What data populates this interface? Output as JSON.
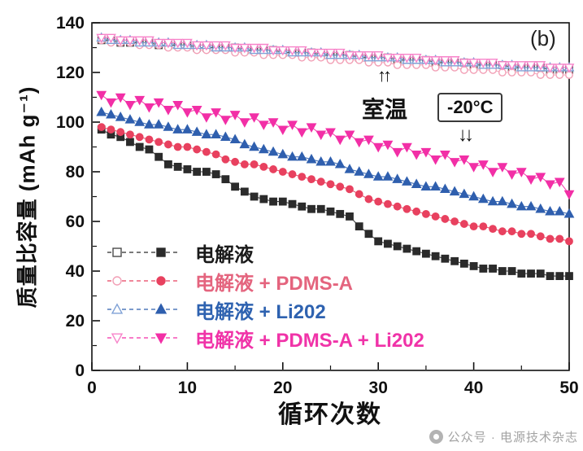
{
  "figure": {
    "panel_label": "(b)"
  },
  "axes": {
    "ylabel": "质量比容量 (mAh g⁻¹)",
    "xlabel": "循环次数"
  },
  "annotations": {
    "room_temp_label": "室温",
    "cold_temp_label": "-20°C",
    "up_arrows": "↑↑",
    "down_arrows": "↓↓"
  },
  "legend": [
    {
      "label": "电解液",
      "marker": "square",
      "open_color": "#4a4a4a",
      "fill_color": "#2b2b2b",
      "label_color": "#1a1a1a"
    },
    {
      "label": "电解液 + PDMS-A",
      "marker": "circle",
      "open_color": "#f2a0b6",
      "fill_color": "#e8415f",
      "label_color": "#e4647e"
    },
    {
      "label": "电解液 + Li202",
      "marker": "triangle-up",
      "open_color": "#7fa1d6",
      "fill_color": "#2f5fae",
      "label_color": "#2e62b0"
    },
    {
      "label": "电解液 + PDMS-A + Li202",
      "marker": "triangle-down",
      "open_color": "#f783c9",
      "fill_color": "#f22fa6",
      "label_color": "#f033a8"
    }
  ],
  "watermark": {
    "text": "公众号 · 电源技术杂志"
  },
  "chart_data": {
    "type": "scatter",
    "title": "",
    "xlabel": "循环次数",
    "ylabel": "质量比容量 (mAh g⁻¹)",
    "x_range": [
      0,
      50
    ],
    "y_range": [
      0,
      140
    ],
    "x_ticks": [
      0,
      10,
      20,
      30,
      40,
      50
    ],
    "y_ticks": [
      0,
      20,
      40,
      60,
      80,
      100,
      120,
      140
    ],
    "grid": false,
    "legend_position": "lower-left",
    "x": [
      1,
      2,
      3,
      4,
      5,
      6,
      7,
      8,
      9,
      10,
      11,
      12,
      13,
      14,
      15,
      16,
      17,
      18,
      19,
      20,
      21,
      22,
      23,
      24,
      25,
      26,
      27,
      28,
      29,
      30,
      31,
      32,
      33,
      34,
      35,
      36,
      37,
      38,
      39,
      40,
      41,
      42,
      43,
      44,
      45,
      46,
      47,
      48,
      49,
      50
    ],
    "series": [
      {
        "name": "电解液",
        "condition": "室温",
        "marker": "square",
        "fill": "open",
        "color": "#4a4a4a",
        "values": [
          133,
          133,
          132,
          132,
          132,
          132,
          131,
          131,
          131,
          131,
          130,
          130,
          130,
          130,
          130,
          129,
          129,
          129,
          129,
          128,
          128,
          128,
          128,
          127,
          127,
          127,
          127,
          126,
          126,
          126,
          126,
          125,
          125,
          125,
          125,
          124,
          124,
          124,
          124,
          123,
          123,
          123,
          123,
          122,
          122,
          122,
          122,
          121,
          121,
          121
        ]
      },
      {
        "name": "电解液 + PDMS-A",
        "condition": "室温",
        "marker": "circle",
        "fill": "open",
        "color": "#f2a0b6",
        "values": [
          133,
          132,
          132,
          132,
          131,
          131,
          131,
          130,
          130,
          130,
          129,
          129,
          129,
          129,
          128,
          128,
          128,
          127,
          127,
          127,
          127,
          126,
          126,
          126,
          125,
          125,
          125,
          125,
          124,
          124,
          124,
          123,
          123,
          123,
          123,
          122,
          122,
          122,
          121,
          121,
          121,
          121,
          120,
          120,
          120,
          120,
          119,
          119,
          119,
          119
        ]
      },
      {
        "name": "电解液 + Li202",
        "condition": "室温",
        "marker": "triangle-up",
        "fill": "open",
        "color": "#7fa1d6",
        "values": [
          134,
          133,
          133,
          133,
          132,
          132,
          132,
          132,
          131,
          131,
          131,
          131,
          130,
          130,
          130,
          130,
          129,
          129,
          129,
          129,
          128,
          128,
          128,
          128,
          127,
          127,
          127,
          127,
          126,
          126,
          126,
          126,
          125,
          125,
          125,
          125,
          124,
          124,
          124,
          124,
          123,
          123,
          123,
          123,
          122,
          122,
          122,
          122,
          122,
          122
        ]
      },
      {
        "name": "电解液 + PDMS-A + Li202",
        "condition": "室温",
        "marker": "triangle-down",
        "fill": "open",
        "color": "#f783c9",
        "values": [
          134,
          134,
          133,
          133,
          133,
          133,
          132,
          132,
          132,
          132,
          131,
          131,
          131,
          131,
          130,
          130,
          130,
          130,
          129,
          129,
          129,
          129,
          128,
          128,
          128,
          128,
          127,
          127,
          127,
          127,
          126,
          126,
          126,
          126,
          125,
          125,
          125,
          125,
          124,
          124,
          124,
          124,
          123,
          123,
          123,
          123,
          123,
          122,
          122,
          122
        ]
      },
      {
        "name": "电解液",
        "condition": "-20°C",
        "marker": "square",
        "fill": "filled",
        "color": "#2b2b2b",
        "values": [
          97,
          95,
          94,
          92,
          90,
          89,
          86,
          83,
          82,
          81,
          80,
          80,
          79,
          77,
          74,
          72,
          70,
          69,
          68,
          68,
          67,
          66,
          65,
          65,
          64,
          63,
          62,
          58,
          55,
          52,
          51,
          50,
          49,
          48,
          47,
          46,
          45,
          44,
          43,
          42,
          41,
          41,
          40,
          40,
          39,
          39,
          39,
          38,
          38,
          38
        ]
      },
      {
        "name": "电解液 + PDMS-A",
        "condition": "-20°C",
        "marker": "circle",
        "fill": "filled",
        "color": "#e8415f",
        "values": [
          98,
          97,
          96,
          95,
          94,
          93,
          92,
          91,
          90,
          90,
          89,
          88,
          87,
          85,
          84,
          83,
          83,
          82,
          81,
          80,
          79,
          78,
          77,
          76,
          75,
          74,
          73,
          71,
          69,
          68,
          67,
          66,
          65,
          64,
          63,
          62,
          61,
          60,
          59,
          58,
          58,
          57,
          56,
          56,
          55,
          55,
          54,
          53,
          53,
          52
        ]
      },
      {
        "name": "电解液 + Li202",
        "condition": "-20°C",
        "marker": "triangle-up",
        "fill": "filled",
        "color": "#2f5fae",
        "values": [
          104,
          103,
          102,
          101,
          100,
          99,
          99,
          98,
          97,
          97,
          96,
          95,
          95,
          94,
          93,
          91,
          90,
          89,
          88,
          87,
          86,
          86,
          85,
          84,
          84,
          83,
          81,
          80,
          79,
          78,
          78,
          77,
          76,
          75,
          74,
          74,
          73,
          72,
          71,
          70,
          69,
          68,
          68,
          67,
          66,
          66,
          65,
          64,
          64,
          63
        ]
      },
      {
        "name": "电解液 + PDMS-A + Li202",
        "condition": "-20°C",
        "marker": "triangle-down",
        "fill": "filled",
        "color": "#f22fa6",
        "values": [
          111,
          108,
          110,
          107,
          109,
          106,
          108,
          105,
          107,
          104,
          105,
          102,
          104,
          101,
          103,
          100,
          102,
          99,
          100,
          97,
          99,
          96,
          98,
          95,
          96,
          93,
          95,
          92,
          93,
          90,
          91,
          88,
          90,
          87,
          88,
          85,
          87,
          84,
          85,
          82,
          83,
          80,
          82,
          79,
          80,
          77,
          78,
          75,
          76,
          71
        ]
      }
    ]
  }
}
